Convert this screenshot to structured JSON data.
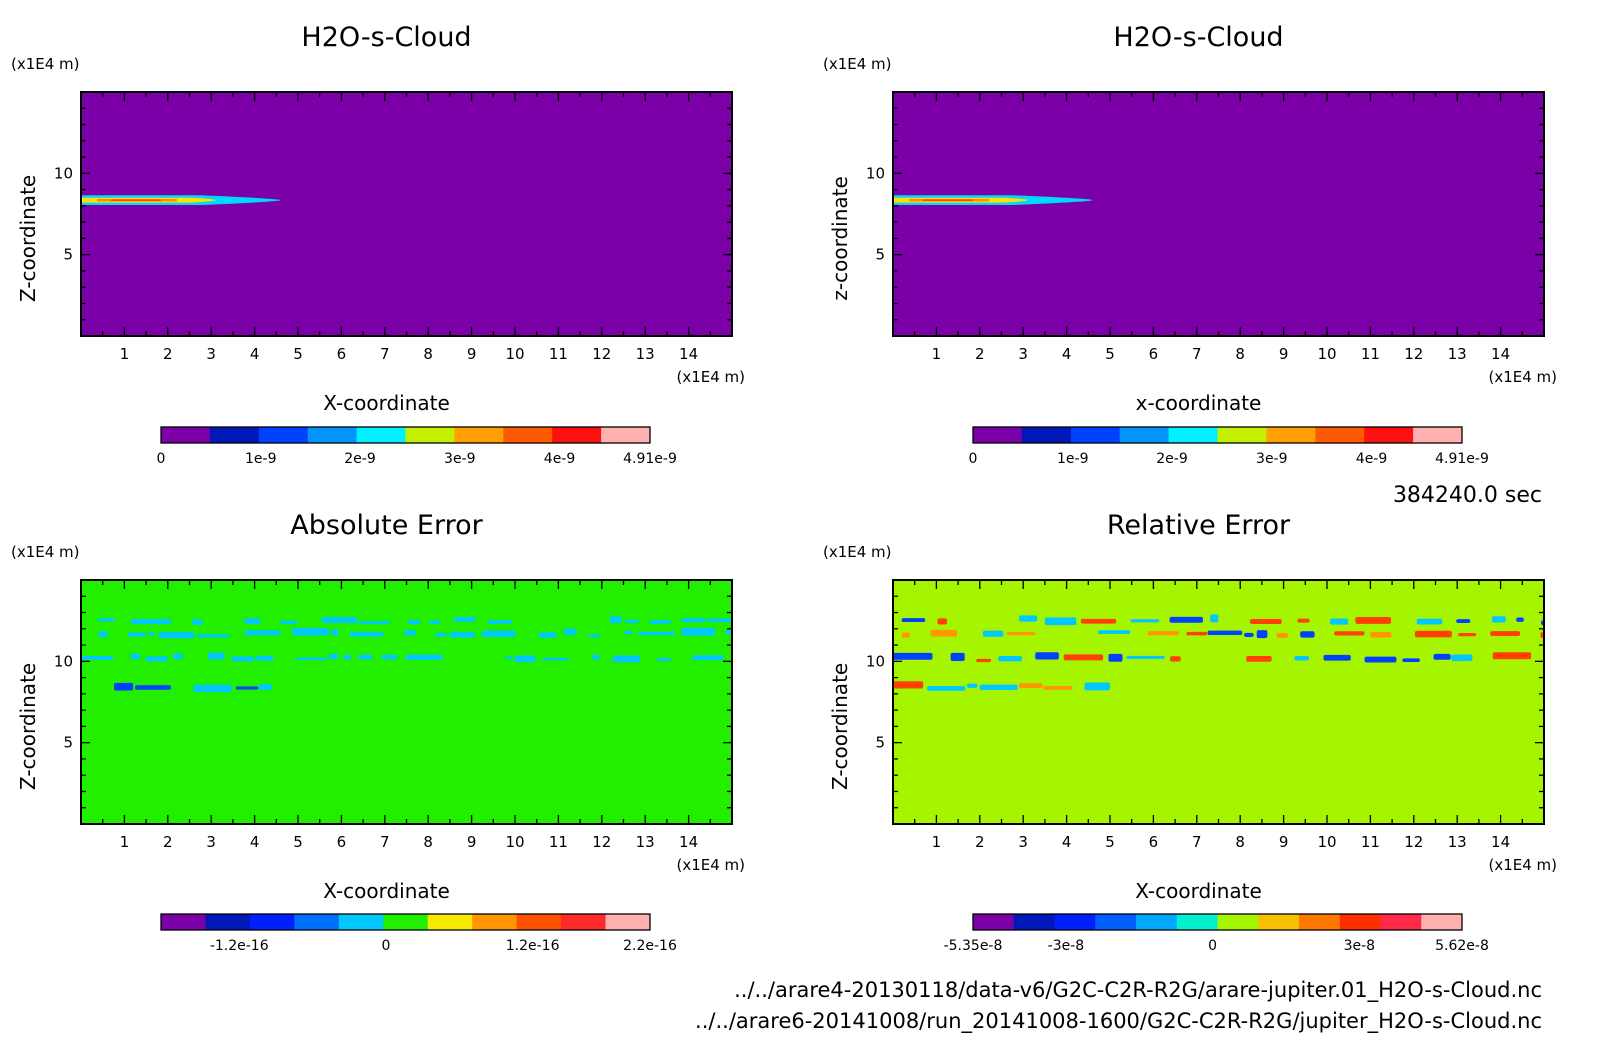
{
  "colors": {
    "field_background": "#7b00a8",
    "abs_error_background": "#22ee00",
    "rel_error_background": "#a6f500"
  },
  "time_label": "384240.0 sec",
  "footer": {
    "line1": "../../arare4-20130118/data-v6/G2C-C2R-R2G/arare-jupiter.01_H2O-s-Cloud.nc",
    "line2": "../../arare6-20141008/run_20141008-1600/G2C-C2R-R2G/jupiter_H2O-s-Cloud.nc"
  },
  "chart_data": [
    {
      "type": "heatmap",
      "title": "H2O-s-Cloud",
      "xlabel": "X-coordinate",
      "ylabel": "Z-coordinate",
      "x_unit": "(x1E4 m)",
      "y_unit": "(x1E4 m)",
      "xlim": [
        0,
        15
      ],
      "ylim": [
        0,
        15
      ],
      "x_ticks": [
        "1",
        "2",
        "3",
        "4",
        "5",
        "6",
        "7",
        "8",
        "9",
        "10",
        "11",
        "12",
        "13",
        "14"
      ],
      "y_ticks": [
        "5",
        "10"
      ],
      "background": "#7b00a8",
      "features": [
        {
          "x0": 0,
          "x1": 4.6,
          "z": 8.35,
          "thickness": 0.3,
          "colors": [
            "#00d8ff",
            "#ffe000",
            "#ff8a00",
            "#ff2a00"
          ]
        }
      ],
      "colorbar": {
        "colors": [
          "#7b00a8",
          "#0018b8",
          "#0040ff",
          "#0094ff",
          "#00f0ff",
          "#c4f000",
          "#ffa000",
          "#ff5a00",
          "#ff1010",
          "#ffb0b0"
        ],
        "labels": [
          "0",
          "1e-9",
          "2e-9",
          "3e-9",
          "4e-9",
          "4.91e-9"
        ]
      }
    },
    {
      "type": "heatmap",
      "title": "H2O-s-Cloud",
      "xlabel": "x-coordinate",
      "ylabel": "z-coordinate",
      "x_unit": "(x1E4 m)",
      "y_unit": "(x1E4 m)",
      "xlim": [
        0,
        15
      ],
      "ylim": [
        0,
        15
      ],
      "x_ticks": [
        "1",
        "2",
        "3",
        "4",
        "5",
        "6",
        "7",
        "8",
        "9",
        "10",
        "11",
        "12",
        "13",
        "14"
      ],
      "y_ticks": [
        "5",
        "10"
      ],
      "background": "#7b00a8",
      "features": [
        {
          "x0": 0,
          "x1": 4.6,
          "z": 8.35,
          "thickness": 0.3,
          "colors": [
            "#00d8ff",
            "#ffe000",
            "#ff8a00",
            "#ff2a00"
          ]
        }
      ],
      "colorbar": {
        "colors": [
          "#7b00a8",
          "#0018b8",
          "#0040ff",
          "#0094ff",
          "#00f0ff",
          "#c4f000",
          "#ffa000",
          "#ff5a00",
          "#ff1010",
          "#ffb0b0"
        ],
        "labels": [
          "0",
          "1e-9",
          "2e-9",
          "3e-9",
          "4e-9",
          "4.91e-9"
        ]
      }
    },
    {
      "type": "heatmap",
      "title": "Absolute Error",
      "xlabel": "X-coordinate",
      "ylabel": "Z-coordinate",
      "x_unit": "(x1E4 m)",
      "y_unit": "(x1E4 m)",
      "xlim": [
        0,
        15
      ],
      "ylim": [
        0,
        15
      ],
      "x_ticks": [
        "1",
        "2",
        "3",
        "4",
        "5",
        "6",
        "7",
        "8",
        "9",
        "10",
        "11",
        "12",
        "13",
        "14"
      ],
      "y_ticks": [
        "5",
        "10"
      ],
      "background": "#22ee00",
      "features": [
        {
          "x0": 0,
          "x1": 4.4,
          "z": 8.3,
          "thickness": 0.3,
          "colors": [
            "#00c8ff",
            "#ff4000",
            "#ffa000",
            "#0040ff"
          ]
        },
        {
          "x0": 0.4,
          "x1": 15,
          "z": 11.6,
          "thickness": 0.3,
          "colors": [
            "#00c8ff"
          ]
        },
        {
          "x0": 0.4,
          "x1": 15,
          "z": 12.4,
          "thickness": 0.25,
          "colors": [
            "#00c8ff"
          ]
        },
        {
          "x0": 0,
          "x1": 14.8,
          "z": 10.1,
          "thickness": 0.25,
          "colors": [
            "#00c8ff"
          ]
        }
      ],
      "colorbar": {
        "colors": [
          "#7b00a8",
          "#0018b8",
          "#0020ff",
          "#0070ff",
          "#00c8ff",
          "#22ee00",
          "#f8e800",
          "#ff9600",
          "#ff5000",
          "#ff2a2a",
          "#ffb0b0"
        ],
        "labels": [
          "-1.2e-16",
          "0",
          "1.2e-16",
          "2.2e-16"
        ]
      }
    },
    {
      "type": "heatmap",
      "title": "Relative Error",
      "xlabel": "X-coordinate",
      "ylabel": "Z-coordinate",
      "x_unit": "(x1E4 m)",
      "y_unit": "(x1E4 m)",
      "xlim": [
        0,
        15
      ],
      "ylim": [
        0,
        15
      ],
      "x_ticks": [
        "1",
        "2",
        "3",
        "4",
        "5",
        "6",
        "7",
        "8",
        "9",
        "10",
        "11",
        "12",
        "13",
        "14"
      ],
      "y_ticks": [
        "5",
        "10"
      ],
      "background": "#a6f500",
      "features": [
        {
          "x0": 0,
          "x1": 5,
          "z": 8.3,
          "thickness": 0.3,
          "colors": [
            "#ff4000",
            "#00c8ff",
            "#0040ff",
            "#ff9600"
          ]
        },
        {
          "x0": 0.2,
          "x1": 15,
          "z": 11.6,
          "thickness": 0.3,
          "colors": [
            "#0040ff",
            "#ff4000",
            "#00c8ff",
            "#ff9600"
          ]
        },
        {
          "x0": 0.2,
          "x1": 15,
          "z": 12.4,
          "thickness": 0.3,
          "colors": [
            "#ff4000",
            "#0040ff",
            "#00c8ff"
          ]
        },
        {
          "x0": 0,
          "x1": 15,
          "z": 10.1,
          "thickness": 0.3,
          "colors": [
            "#0040ff",
            "#ff4000",
            "#00c8ff"
          ]
        }
      ],
      "colorbar": {
        "colors": [
          "#7b00a8",
          "#0018b8",
          "#0020ff",
          "#0060ff",
          "#00a8ff",
          "#00f0d0",
          "#a6f500",
          "#f8c000",
          "#ff7800",
          "#ff3000",
          "#ff2a4a",
          "#ffb0b0"
        ],
        "labels": [
          "-5.35e-8",
          "-3e-8",
          "0",
          "3e-8",
          "5.62e-8"
        ]
      }
    }
  ]
}
